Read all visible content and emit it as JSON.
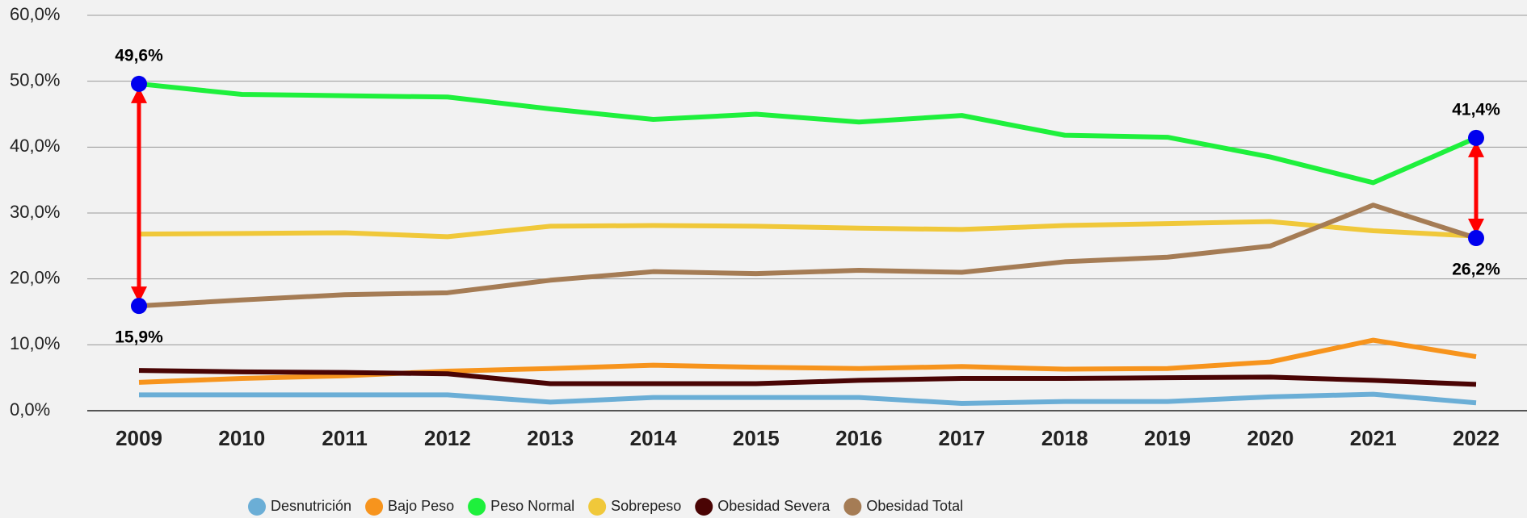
{
  "chart_data": {
    "type": "line",
    "categories": [
      "2009",
      "2010",
      "2011",
      "2012",
      "2013",
      "2014",
      "2015",
      "2016",
      "2017",
      "2018",
      "2019",
      "2020",
      "2021",
      "2022"
    ],
    "series": [
      {
        "name": "Desnutrición",
        "color": "#6baed6",
        "values": [
          2.4,
          2.4,
          2.4,
          2.4,
          1.3,
          2.0,
          2.0,
          2.0,
          1.1,
          1.4,
          1.4,
          2.1,
          2.5,
          1.2
        ]
      },
      {
        "name": "Bajo Peso",
        "color": "#f7941d",
        "values": [
          4.3,
          4.9,
          5.3,
          6.0,
          6.4,
          6.9,
          6.6,
          6.4,
          6.7,
          6.3,
          6.4,
          7.4,
          10.7,
          8.2
        ]
      },
      {
        "name": "Peso Normal",
        "color": "#1ef03c",
        "values": [
          49.6,
          48.0,
          47.8,
          47.6,
          45.8,
          44.2,
          45.0,
          43.8,
          44.8,
          41.8,
          41.5,
          38.5,
          34.6,
          41.4
        ]
      },
      {
        "name": "Sobrepeso",
        "color": "#f0c83a",
        "values": [
          26.8,
          26.9,
          27.0,
          26.4,
          28.0,
          28.1,
          28.0,
          27.7,
          27.5,
          28.1,
          28.4,
          28.7,
          27.3,
          26.5
        ]
      },
      {
        "name": "Obesidad Severa",
        "color": "#4a0404",
        "values": [
          6.1,
          5.9,
          5.8,
          5.6,
          4.1,
          4.1,
          4.1,
          4.6,
          4.9,
          4.9,
          5.0,
          5.1,
          4.6,
          4.0
        ]
      },
      {
        "name": "Obesidad Total",
        "color": "#a57c55",
        "values": [
          15.9,
          16.8,
          17.6,
          17.9,
          19.8,
          21.1,
          20.8,
          21.3,
          21.0,
          22.6,
          23.3,
          25.0,
          31.2,
          26.2
        ]
      }
    ],
    "ylim": [
      0,
      60
    ],
    "yticks": [
      {
        "value": 0,
        "label": "0,0%"
      },
      {
        "value": 10,
        "label": "10,0%"
      },
      {
        "value": 20,
        "label": "20,0%"
      },
      {
        "value": 30,
        "label": "30,0%"
      },
      {
        "value": 40,
        "label": "40,0%"
      },
      {
        "value": 50,
        "label": "50,0%"
      },
      {
        "value": 60,
        "label": "60,0%"
      }
    ],
    "grid": true,
    "annotations": [
      {
        "label": "49,6%",
        "x": "2009",
        "value": 49.6,
        "position": "above"
      },
      {
        "label": "15,9%",
        "x": "2009",
        "value": 15.9,
        "position": "below"
      },
      {
        "label": "41,4%",
        "x": "2022",
        "value": 41.4,
        "position": "above"
      },
      {
        "label": "26,2%",
        "x": "2022",
        "value": 26.2,
        "position": "below"
      }
    ],
    "marker_color": "#0000ee",
    "arrow_color": "#ff0000",
    "legend": "bottom"
  }
}
